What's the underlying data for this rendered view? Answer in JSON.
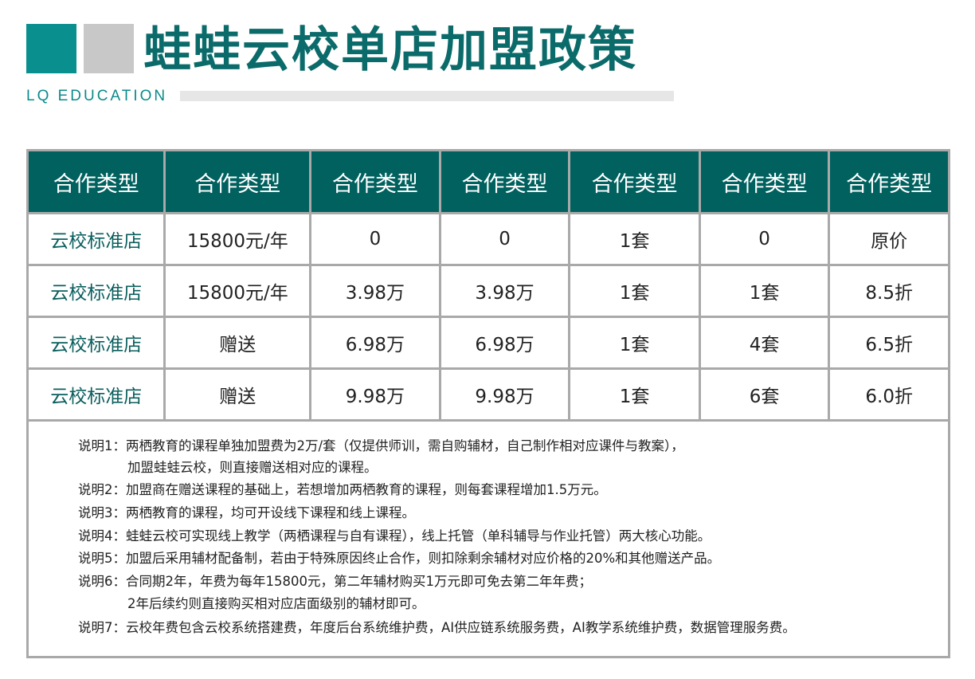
{
  "header": {
    "title": "蛙蛙云校单店加盟政策",
    "subtitle": "LQ EDUCATION",
    "accent": "#00706f",
    "secondary": "#c8c8c8"
  },
  "table": {
    "headers": [
      "合作类型",
      "合作类型",
      "合作类型",
      "合作类型",
      "合作类型",
      "合作类型",
      "合作类型"
    ],
    "rows": [
      [
        "云校标准店",
        "15800元/年",
        "0",
        "0",
        "1套",
        "0",
        "原价"
      ],
      [
        "云校标准店",
        "15800元/年",
        "3.98万",
        "3.98万",
        "1套",
        "1套",
        "8.5折"
      ],
      [
        "云校标准店",
        "赠送",
        "6.98万",
        "6.98万",
        "1套",
        "4套",
        "6.5折"
      ],
      [
        "云校标准店",
        "赠送",
        "9.98万",
        "9.98万",
        "1套",
        "6套",
        "6.0折"
      ]
    ]
  },
  "notes": [
    "说明1：两栖教育的课程单独加盟费为2万/套（仅提供师训，需自购辅材，自己制作相对应课件与教案），",
    "加盟蛙蛙云校，则直接赠送相对应的课程。",
    "说明2：加盟商在赠送课程的基础上，若想增加两栖教育的课程，则每套课程增加1.5万元。",
    "说明3：两栖教育的课程，均可开设线下课程和线上课程。",
    "说明4：蛙蛙云校可实现线上教学（两栖课程与自有课程），线上托管（单科辅导与作业托管）两大核心功能。",
    "说明5：加盟后采用辅材配备制，若由于特殊原因终止合作，则扣除剩余辅材对应价格的20%和其他赠送产品。",
    "说明6：合同期2年，年费为每年15800元，第二年辅材购买1万元即可免去第二年年费；",
    "2年后续约则直接购买相对应店面级别的辅材即可。",
    "说明7：云校年费包含云校系统搭建费，年度后台系统维护费，AI供应链系统服务费，AI教学系统维护费，数据管理服务费。"
  ]
}
